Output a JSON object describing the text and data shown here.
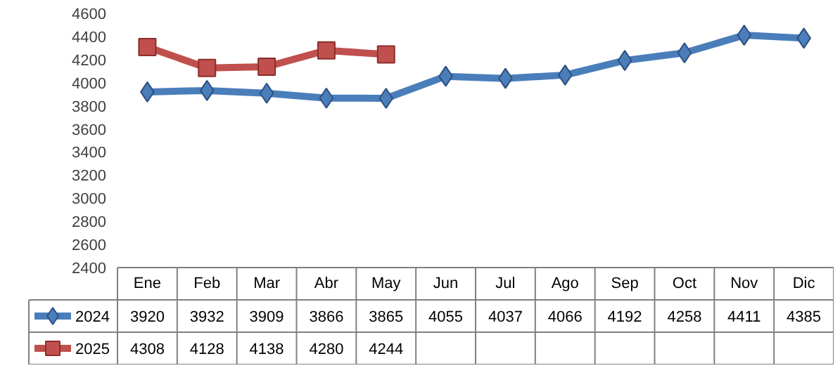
{
  "chart_data": {
    "type": "line",
    "categories": [
      "Ene",
      "Feb",
      "Mar",
      "Abr",
      "May",
      "Jun",
      "Jul",
      "Ago",
      "Sep",
      "Oct",
      "Nov",
      "Dic"
    ],
    "ylim": [
      2400,
      4600
    ],
    "yticks": [
      2400,
      2600,
      2800,
      3000,
      3200,
      3400,
      3600,
      3800,
      4000,
      4200,
      4400,
      4600
    ],
    "grid": false,
    "legend": "bottom left",
    "data_labels": true,
    "series": [
      {
        "name": "2024",
        "color": "#4a7ebb",
        "marker": "diamond",
        "values": [
          3920,
          3932,
          3909,
          3866,
          3865,
          4055,
          4037,
          4066,
          4192,
          4258,
          4411,
          4385
        ]
      },
      {
        "name": "2025",
        "color": "#c0504d",
        "marker": "square",
        "values": [
          4308,
          4128,
          4138,
          4280,
          4244,
          null,
          null,
          null,
          null,
          null,
          null,
          null
        ]
      }
    ]
  }
}
